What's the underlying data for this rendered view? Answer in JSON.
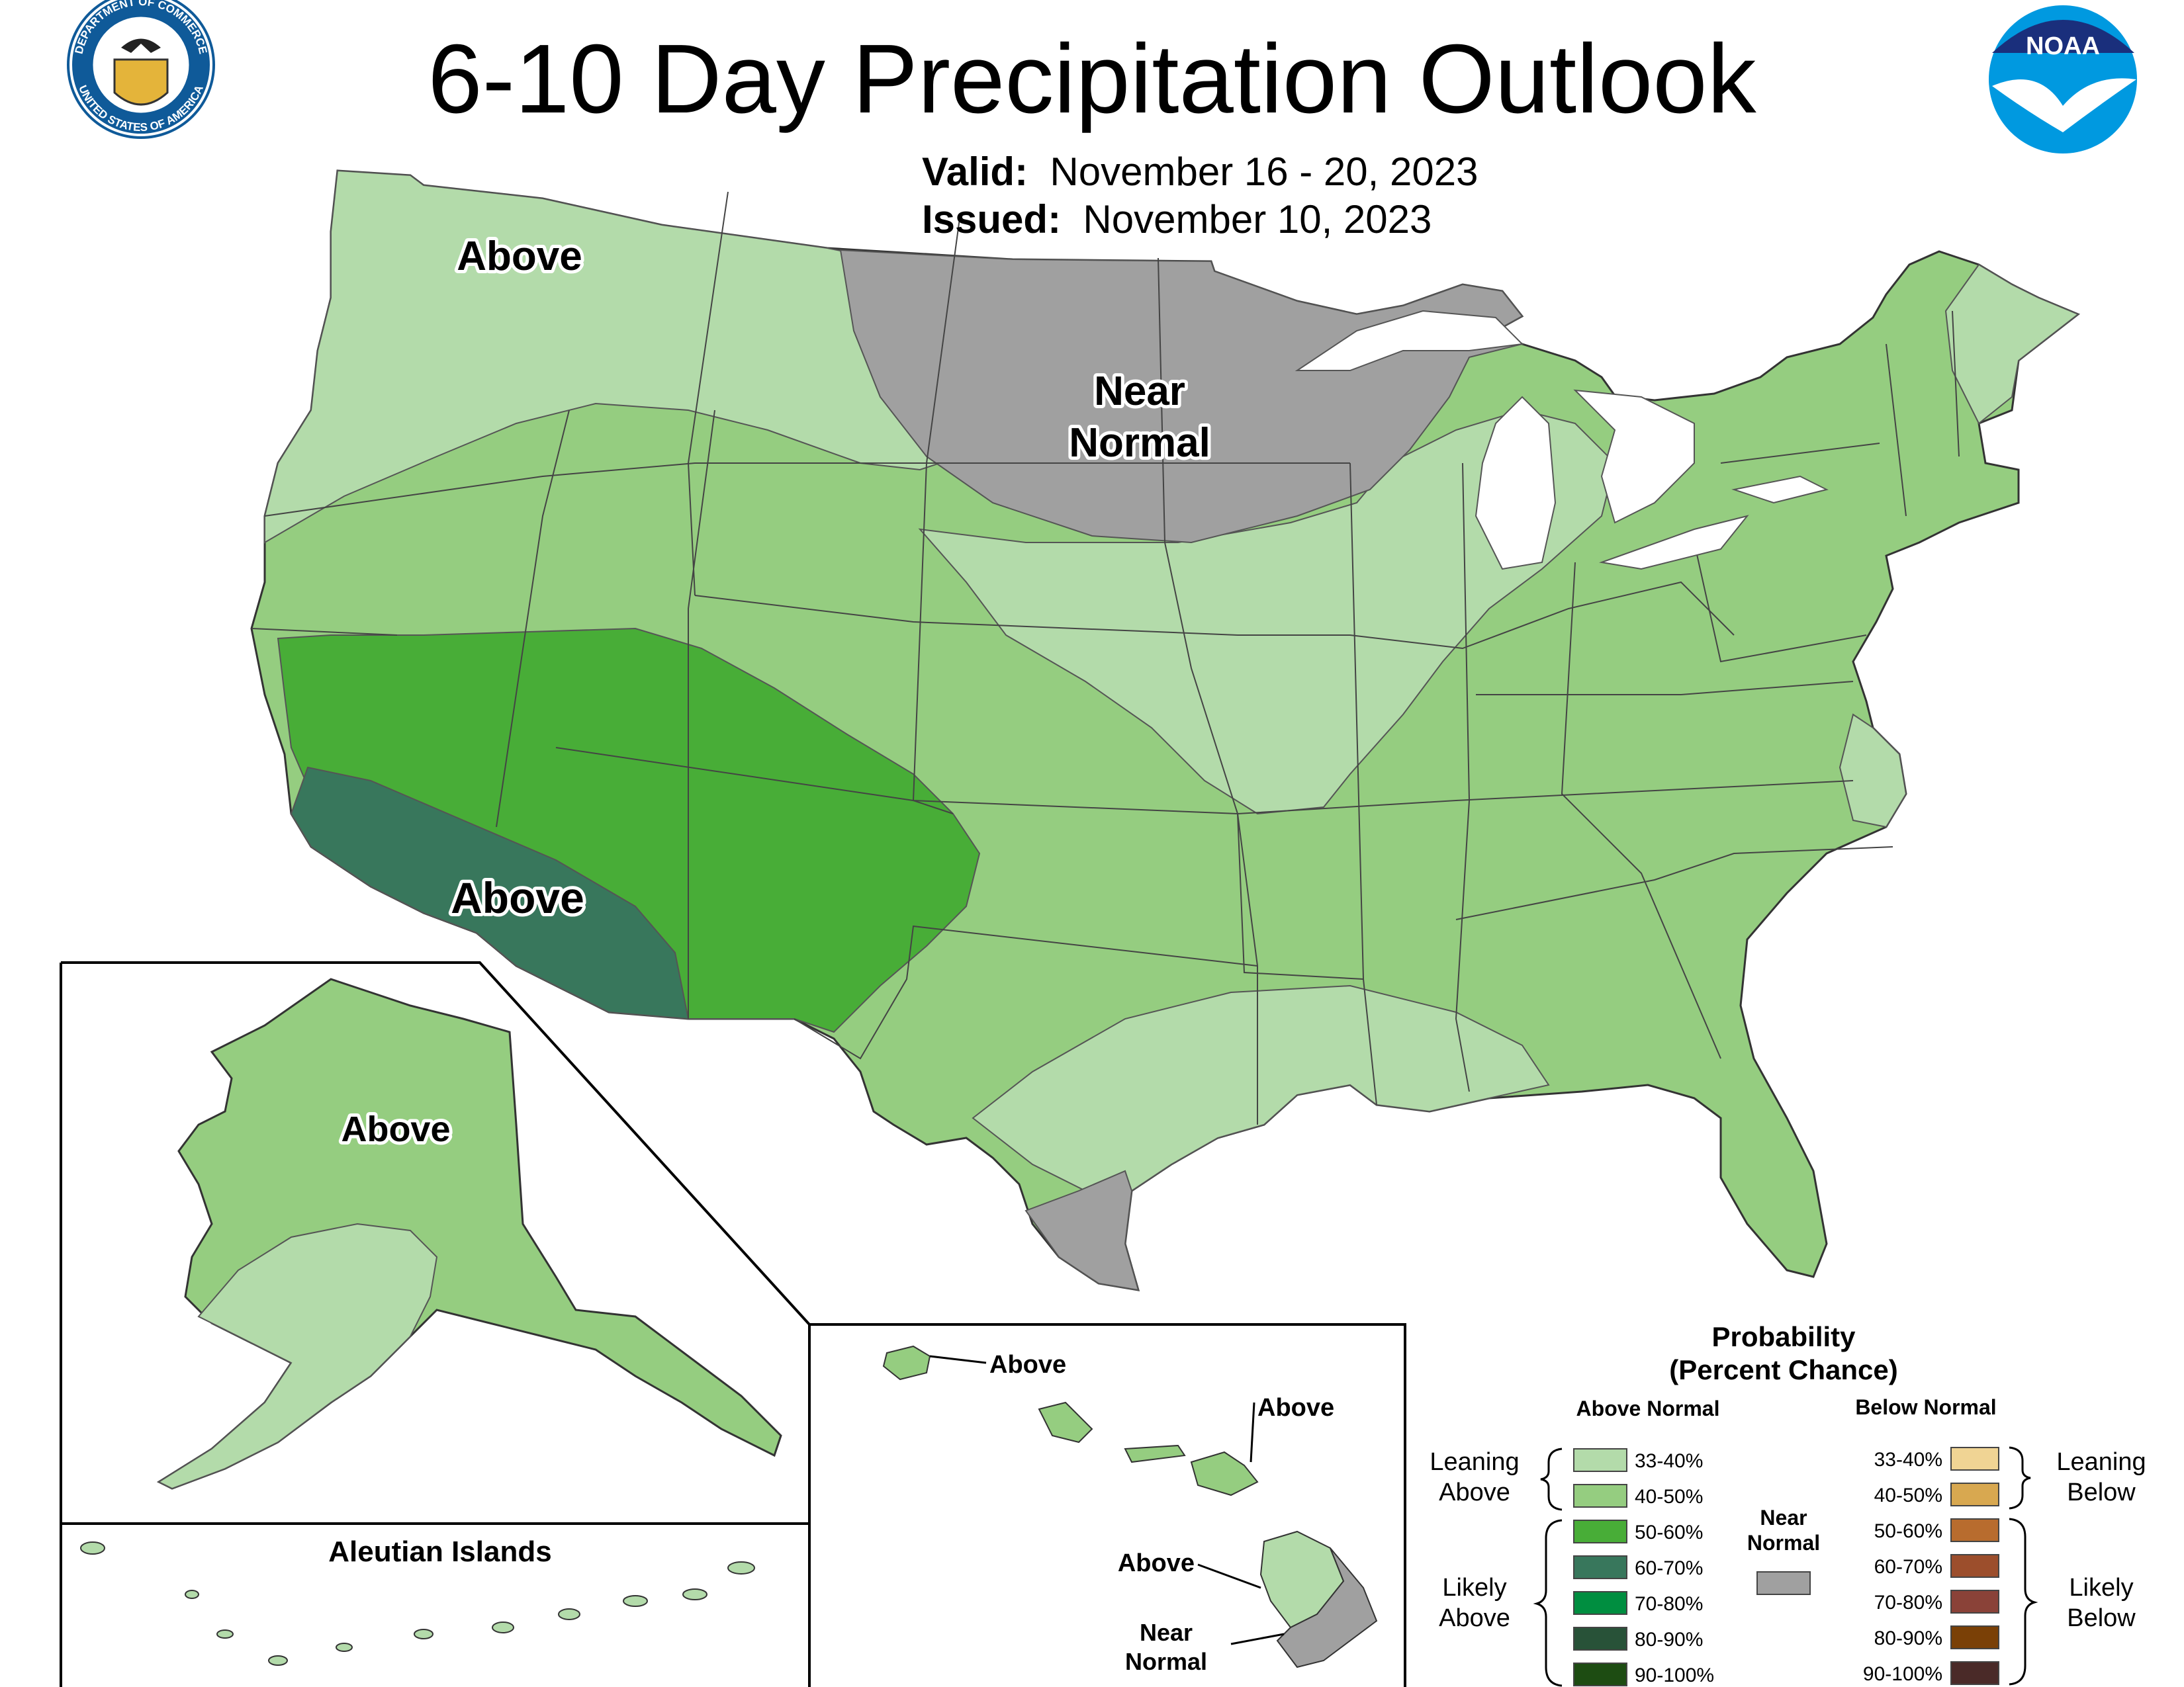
{
  "header": {
    "title": "6-10 Day Precipitation Outlook",
    "valid_label": "Valid:",
    "valid_value": "November 16 - 20, 2023",
    "issued_label": "Issued:",
    "issued_value": "November 10, 2023"
  },
  "logos": {
    "commerce_seal_text": [
      "DEPARTMENT OF COMMERCE",
      "UNITED STATES OF AMERICA"
    ],
    "noaa_text": "NOAA"
  },
  "map": {
    "conus_labels": {
      "northwest": "Above",
      "north_central_line1": "Near",
      "north_central_line2": "Normal",
      "southwest": "Above"
    },
    "alaska_label": "Above",
    "aleutian_title": "Aleutian Islands",
    "hawaii_labels": {
      "kauai": "Above",
      "maui": "Above",
      "big_island_north": "Above",
      "big_island_south_line1": "Near",
      "big_island_south_line2": "Normal"
    }
  },
  "colors": {
    "above_33_40": "#b3dbaa",
    "above_40_50": "#95cd80",
    "above_50_60": "#48ad37",
    "above_60_70": "#38775c",
    "above_70_80": "#008e40",
    "above_80_90": "#285238",
    "above_90_100": "#1d4c12",
    "near_normal": "#a0a0a0",
    "below_33_40": "#f0d494",
    "below_40_50": "#d8a850",
    "below_50_60": "#b86c2e",
    "below_60_70": "#9c4e2c",
    "below_70_80": "#8a4238",
    "below_80_90": "#7a4006",
    "below_90_100": "#4a2a28"
  },
  "legend": {
    "title_line1": "Probability",
    "title_line2": "(Percent Chance)",
    "above_header": "Above Normal",
    "below_header": "Below Normal",
    "near_normal_line1": "Near",
    "near_normal_line2": "Normal",
    "leaning_above": [
      "Leaning",
      "Above"
    ],
    "likely_above": [
      "Likely",
      "Above"
    ],
    "leaning_below": [
      "Leaning",
      "Below"
    ],
    "likely_below": [
      "Likely",
      "Below"
    ],
    "ranges": [
      "33-40%",
      "40-50%",
      "50-60%",
      "60-70%",
      "70-80%",
      "80-90%",
      "90-100%"
    ]
  }
}
